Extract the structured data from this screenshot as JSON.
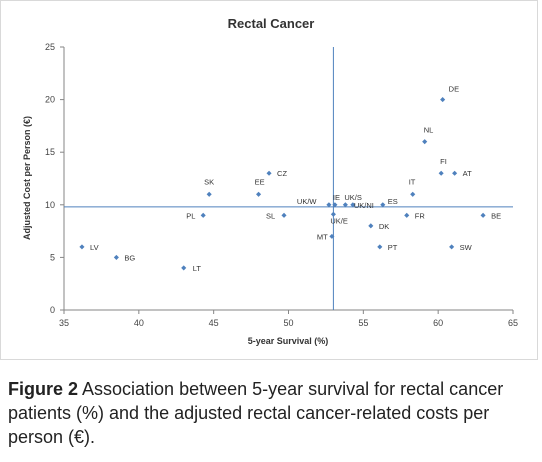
{
  "chart_data": {
    "type": "scatter",
    "title": "Rectal Cancer",
    "xlabel": "5-year Survival (%)",
    "ylabel": "Adjusted Cost per Person (€)",
    "xlim": [
      35,
      65
    ],
    "ylim": [
      0,
      25
    ],
    "xticks": [
      "35",
      "40",
      "45",
      "50",
      "55",
      "60",
      "65"
    ],
    "yticks": [
      "0",
      "5",
      "10",
      "15",
      "20",
      "25"
    ],
    "grid": false,
    "reference_lines": {
      "x": 53,
      "y": 9.8
    },
    "point_color": "#4f81bd",
    "points": [
      {
        "label": "LV",
        "x": 36.2,
        "y": 6
      },
      {
        "label": "BG",
        "x": 38.5,
        "y": 5
      },
      {
        "label": "LT",
        "x": 43.0,
        "y": 4
      },
      {
        "label": "PL",
        "x": 44.3,
        "y": 9
      },
      {
        "label": "SK",
        "x": 44.7,
        "y": 11
      },
      {
        "label": "EE",
        "x": 48.0,
        "y": 11
      },
      {
        "label": "CZ",
        "x": 48.7,
        "y": 13
      },
      {
        "label": "SL",
        "x": 49.7,
        "y": 9
      },
      {
        "label": "UK/W",
        "x": 52.7,
        "y": 10
      },
      {
        "label": "IE",
        "x": 53.1,
        "y": 10
      },
      {
        "label": "UK/E",
        "x": 53.0,
        "y": 9.1
      },
      {
        "label": "MT",
        "x": 52.9,
        "y": 7
      },
      {
        "label": "UK/S",
        "x": 53.8,
        "y": 10
      },
      {
        "label": "UK/NI",
        "x": 54.3,
        "y": 10
      },
      {
        "label": "ES",
        "x": 56.3,
        "y": 10
      },
      {
        "label": "DK",
        "x": 55.5,
        "y": 8
      },
      {
        "label": "PT",
        "x": 56.1,
        "y": 6
      },
      {
        "label": "IT",
        "x": 58.3,
        "y": 11
      },
      {
        "label": "FR",
        "x": 57.9,
        "y": 9
      },
      {
        "label": "NL",
        "x": 59.1,
        "y": 16
      },
      {
        "label": "DE",
        "x": 60.3,
        "y": 20
      },
      {
        "label": "FI",
        "x": 60.2,
        "y": 13
      },
      {
        "label": "AT",
        "x": 61.1,
        "y": 13
      },
      {
        "label": "SW",
        "x": 60.9,
        "y": 6
      },
      {
        "label": "BE",
        "x": 63.0,
        "y": 9
      }
    ]
  },
  "caption": {
    "lead": "Figure 2",
    "text": " Association between 5-year survival for rectal cancer patients (%) and the adjusted rectal cancer-related costs per person (€)."
  }
}
